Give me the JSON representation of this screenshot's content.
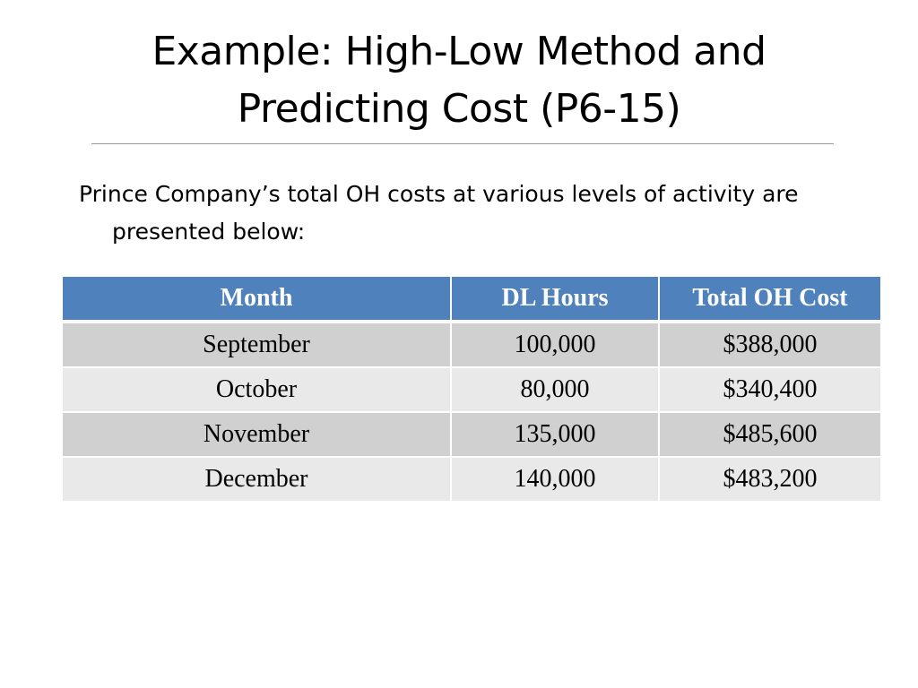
{
  "slide": {
    "title_line1": "Example: High-Low Method and",
    "title_line2": "Predicting Cost (P6-15)",
    "body_text": "Prince Company’s total OH costs at various levels of activity are presented below:"
  },
  "table": {
    "headers": [
      "Month",
      "DL Hours",
      "Total OH Cost"
    ],
    "rows": [
      [
        "September",
        "100,000",
        "$388,000"
      ],
      [
        "October",
        "80,000",
        "$340,400"
      ],
      [
        "November",
        "135,000",
        "$485,600"
      ],
      [
        "December",
        "140,000",
        "$483,200"
      ]
    ]
  },
  "colors": {
    "header_bg": "#4f81bd",
    "row_odd_bg": "#d0d0d0",
    "row_even_bg": "#e9e9e9"
  }
}
